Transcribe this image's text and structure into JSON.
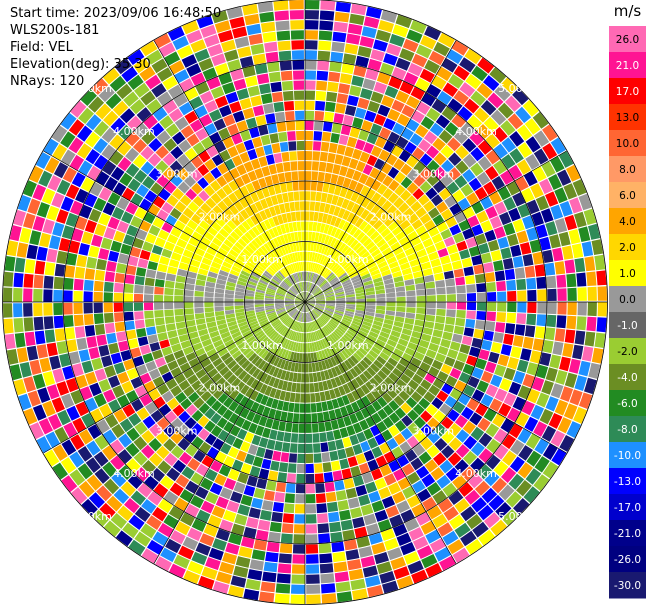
{
  "info": {
    "start_time": "Start time: 2023/09/06 16:48:50",
    "instrument": "WLS200s-181",
    "field": "Field: VEL",
    "elevation": "Elevation(deg): 35.30",
    "nrays": "NRays: 120"
  },
  "chart_data": {
    "type": "ppi",
    "field": "VEL",
    "units": "m/s",
    "n_rays": 120,
    "range_rings": [
      {
        "label": "1.00km",
        "radius_km": 1
      },
      {
        "label": "2.00km",
        "radius_km": 2
      },
      {
        "label": "3.00km",
        "radius_km": 3
      },
      {
        "label": "4.00km",
        "radius_km": 4
      },
      {
        "label": "5.00km",
        "radius_km": 5
      }
    ],
    "colorbar": {
      "unit_label": "m/s",
      "ticks": [
        "26.0",
        "21.0",
        "17.0",
        "13.0",
        "10.0",
        "8.0",
        "6.0",
        "4.0",
        "2.0",
        "1.0",
        "0.0",
        "-1.0",
        "-2.0",
        "-4.0",
        "-6.0",
        "-8.0",
        "-10.0",
        "-13.0",
        "-17.0",
        "-21.0",
        "-26.0",
        "-30.0"
      ],
      "colors": [
        "#ff69b4",
        "#ff1493",
        "#ff0000",
        "#ff3300",
        "#ff6633",
        "#ff9966",
        "#ffb266",
        "#ffa500",
        "#ffd700",
        "#ffff00",
        "#999999",
        "#666666",
        "#9acd32",
        "#6b8e23",
        "#228b22",
        "#2e8b57",
        "#1e90ff",
        "#0000ff",
        "#0000cd",
        "#00008b",
        "#000080",
        "#191970"
      ]
    },
    "pattern": {
      "clean_range_km": 2.6,
      "near_field_colors": [
        "#ffa500",
        "#ffd700",
        "#ffff00",
        "#999999",
        "#9acd32",
        "#228b22",
        "#2e8b57"
      ]
    }
  }
}
